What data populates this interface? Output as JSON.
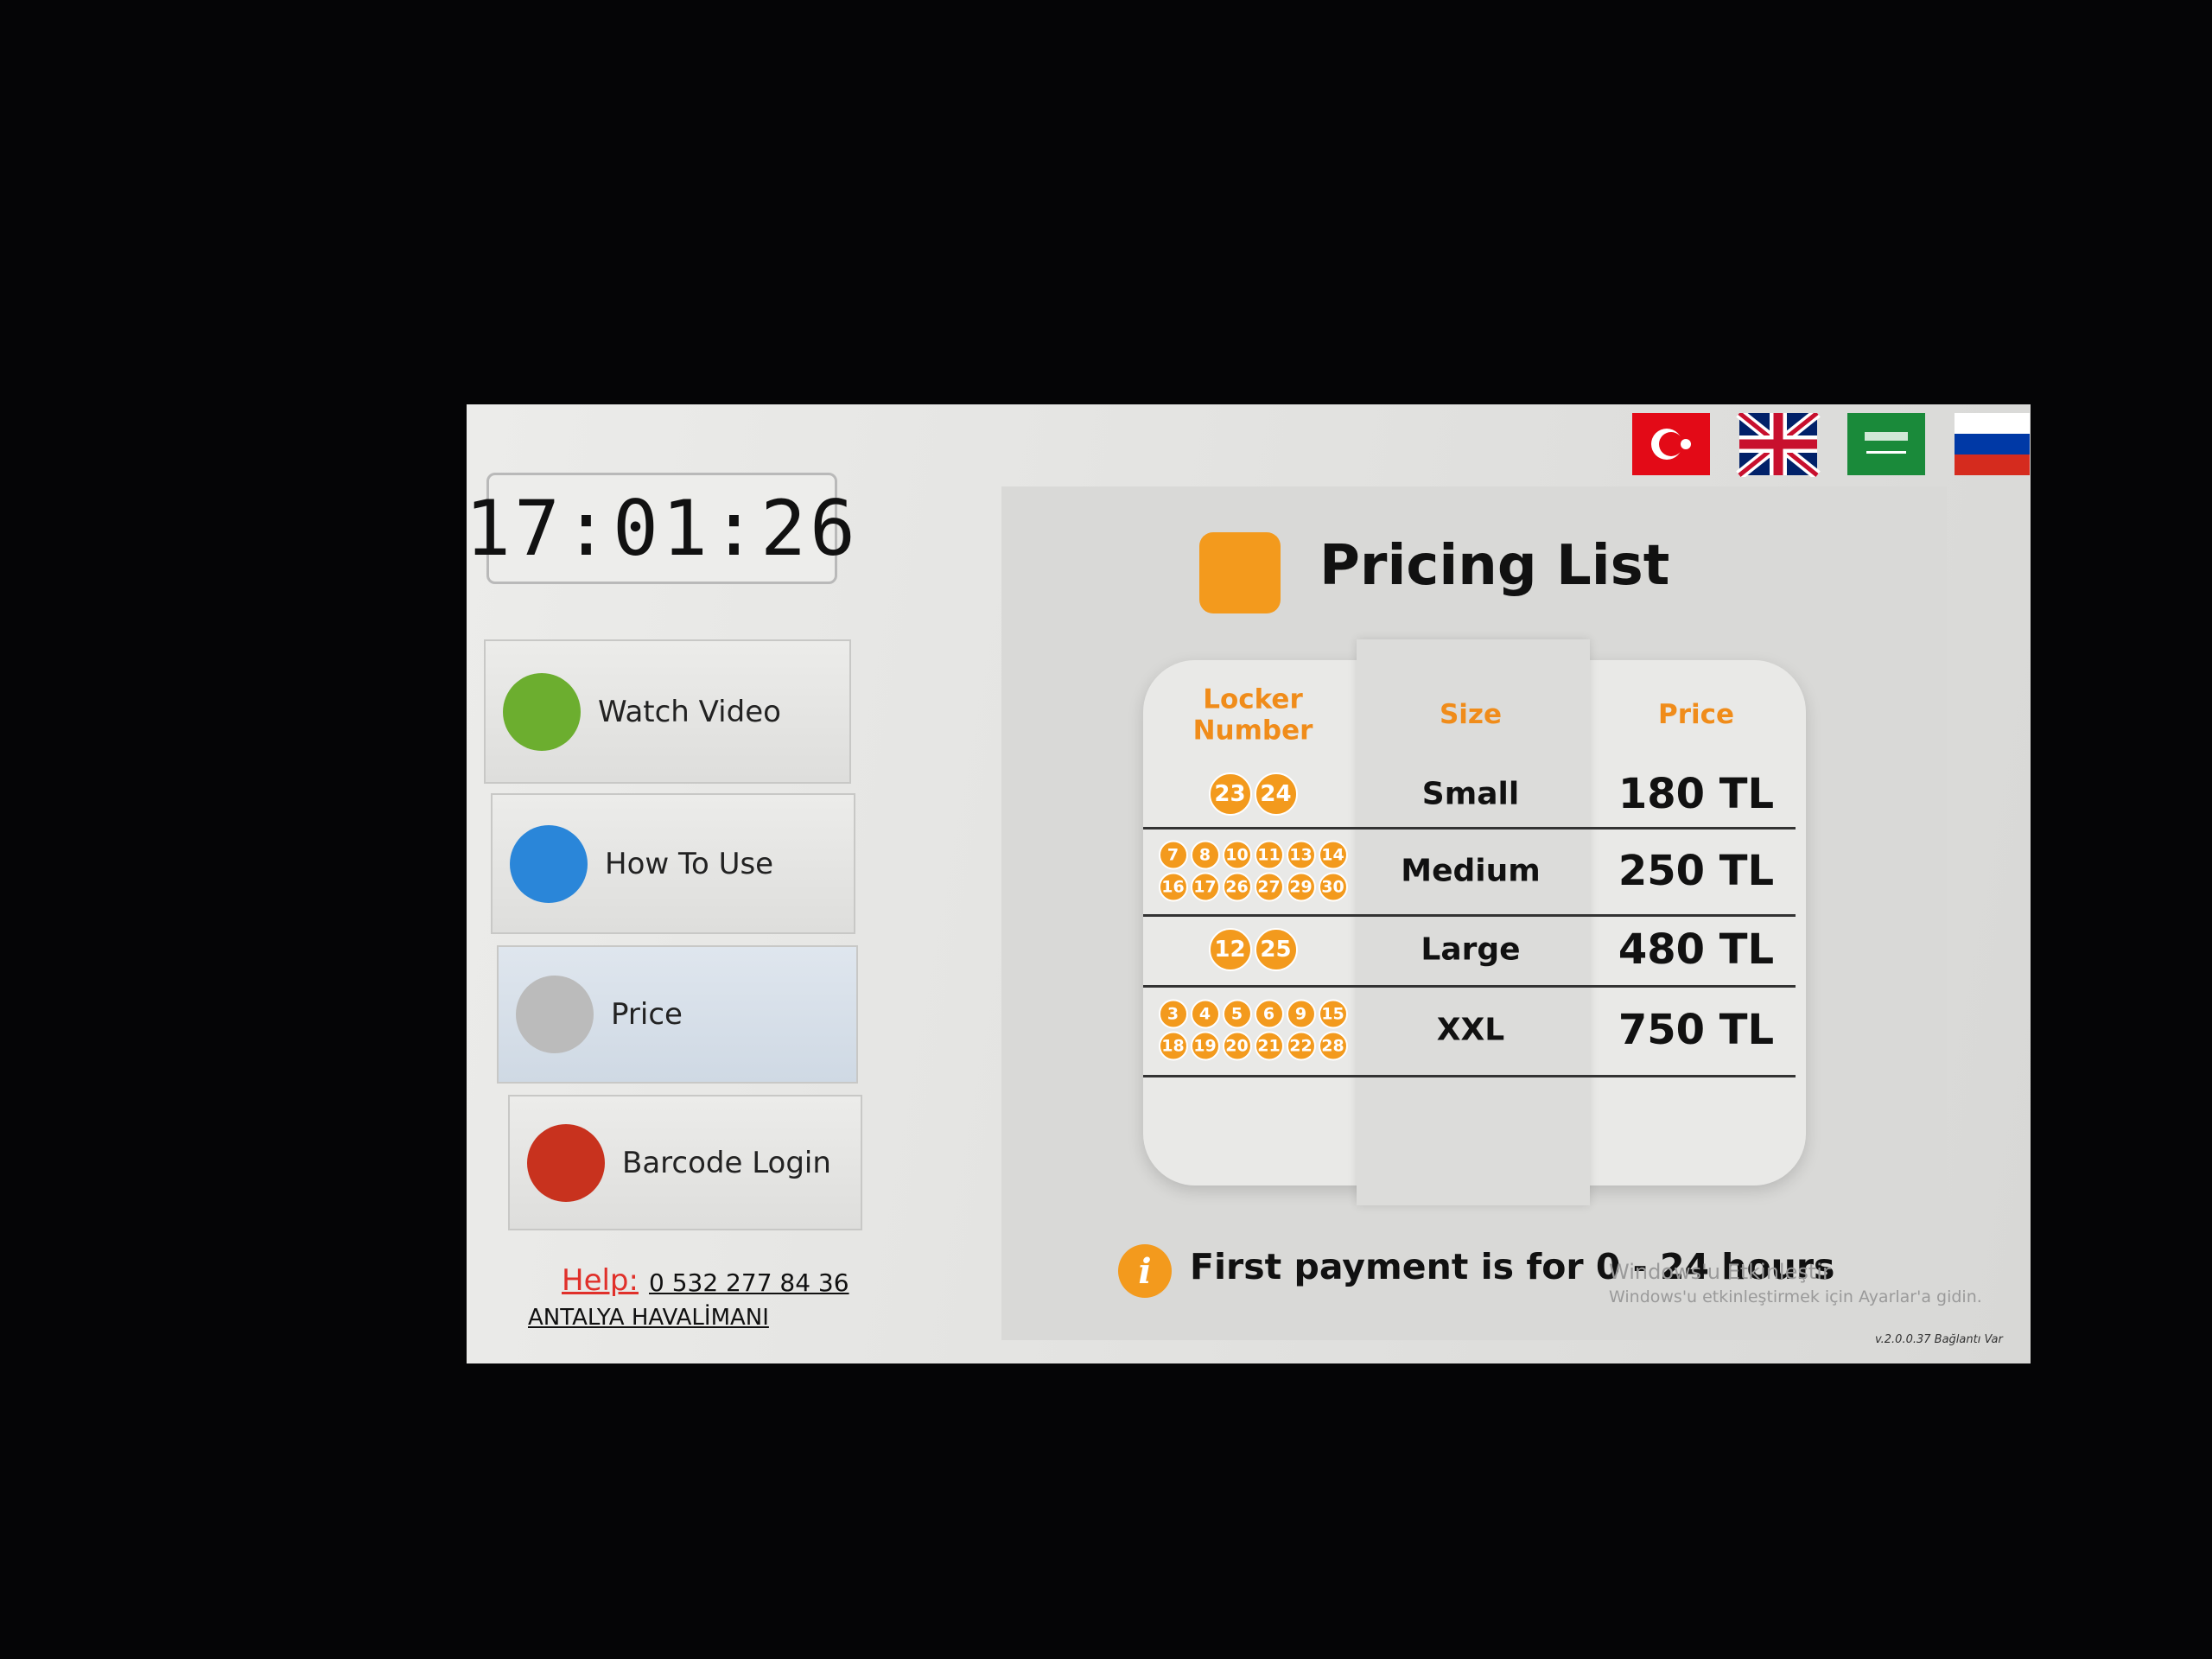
{
  "clock": "17:01:26",
  "menu": [
    "Watch Video",
    "How To Use",
    "Price",
    "Barcode Login"
  ],
  "help": {
    "label": "Help:",
    "phone": "0 532 277 84 36",
    "location": "ANTALYA HAVALİMANI"
  },
  "pricing": {
    "title": "Pricing List",
    "headers": [
      "Locker\nNumber",
      "Size",
      "Price"
    ],
    "rows": [
      {
        "lockers": [
          23,
          24
        ],
        "size": "Small",
        "price": "180 TL"
      },
      {
        "lockers": [
          7,
          8,
          10,
          11,
          13,
          14,
          16,
          17,
          26,
          27,
          29,
          30
        ],
        "size": "Medium",
        "price": "250 TL"
      },
      {
        "lockers": [
          12,
          25
        ],
        "size": "Large",
        "price": "480 TL"
      },
      {
        "lockers": [
          3,
          4,
          5,
          6,
          9,
          15,
          18,
          19,
          20,
          21,
          22,
          28
        ],
        "size": "XXL",
        "price": "750 TL"
      }
    ],
    "note": "First payment is for 0 - 24 hours"
  },
  "watermark": {
    "title": "Windows'u Etkinleştir",
    "text": "Windows'u etkinleştirmek için Ayarlar'a gidin."
  },
  "version": "v.2.0.0.37 Bağlantı Var"
}
